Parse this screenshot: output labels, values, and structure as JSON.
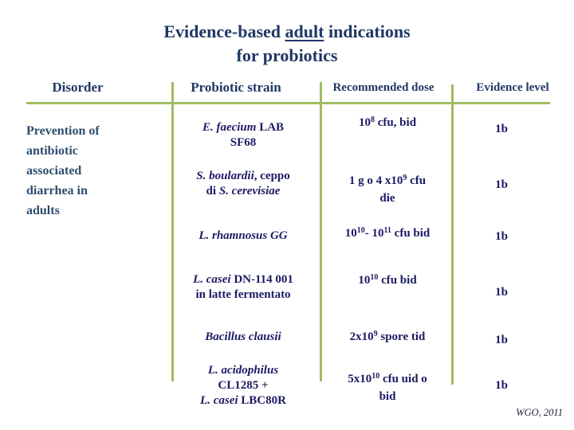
{
  "title": {
    "line1_pre": "Evidence-based ",
    "line1_em": "adult",
    "line1_post": " indications",
    "line2": "for probiotics"
  },
  "source": "WGO, 2011",
  "colors": {
    "title_navy": "#1F3864",
    "body_navy": "#1B1B64",
    "disorder_blue": "#2E4D6E",
    "line_green": "#A0BC62",
    "source_text": "#222233"
  },
  "table": {
    "headers": [
      "Disorder",
      "Probiotic strain",
      "Recommended dose",
      "Evidence level"
    ],
    "disorder_lines": [
      "Prevention of",
      "antibiotic",
      "associated",
      "diarrhea in",
      "adults"
    ],
    "rows": [
      {
        "strain_lines": [
          [
            {
              "t": "E. faecium",
              "i": true
            },
            {
              "t": "  LAB"
            }
          ],
          [
            {
              "t": "SF68"
            }
          ]
        ],
        "dose_lines": [
          [
            {
              "t": "10"
            },
            {
              "t": "8",
              "sup": true
            },
            {
              "t": " cfu, bid"
            }
          ]
        ],
        "evidence": "1b"
      },
      {
        "strain_lines": [
          [
            {
              "t": "S. boulardii",
              "i": true
            },
            {
              "t": ", ceppo"
            }
          ],
          [
            {
              "t": "di "
            },
            {
              "t": "S. cerevisiae",
              "i": true
            }
          ]
        ],
        "dose_lines": [
          [
            {
              "t": "1 g o 4 x10"
            },
            {
              "t": "9",
              "sup": true
            },
            {
              "t": " cfu"
            }
          ],
          [
            {
              "t": "die"
            }
          ]
        ],
        "evidence": "1b"
      },
      {
        "strain_lines": [
          [
            {
              "t": "L. rhamnosus GG",
              "i": true
            }
          ]
        ],
        "dose_lines": [
          [
            {
              "t": "10"
            },
            {
              "t": "10",
              "sup": true
            },
            {
              "t": "- 10"
            },
            {
              "t": "11",
              "sup": true
            },
            {
              "t": " cfu bid"
            }
          ]
        ],
        "evidence": "1b"
      },
      {
        "strain_lines": [
          [
            {
              "t": "L. casei",
              "i": true
            },
            {
              "t": " DN-114 001"
            }
          ],
          [
            {
              "t": "in latte fermentato"
            }
          ]
        ],
        "dose_lines": [
          [
            {
              "t": "10"
            },
            {
              "t": "10",
              "sup": true
            },
            {
              "t": " cfu bid"
            }
          ]
        ],
        "evidence": "1b"
      },
      {
        "strain_lines": [
          [
            {
              "t": "Bacillus clausii",
              "i": true
            }
          ]
        ],
        "dose_lines": [
          [
            {
              "t": "2x10"
            },
            {
              "t": "9",
              "sup": true
            },
            {
              "t": " spore tid"
            }
          ]
        ],
        "evidence": "1b"
      },
      {
        "strain_lines": [
          [
            {
              "t": "L. acidophilus",
              "i": true
            }
          ],
          [
            {
              "t": "CL1285 +"
            }
          ],
          [
            {
              "t": "L. casei",
              "i": true
            },
            {
              "t": " LBC80R"
            }
          ]
        ],
        "dose_lines": [
          [
            {
              "t": "5x10"
            },
            {
              "t": "10",
              "sup": true
            },
            {
              "t": " cfu uid o"
            }
          ],
          [
            {
              "t": "bid"
            }
          ]
        ],
        "evidence": "1b"
      }
    ]
  }
}
